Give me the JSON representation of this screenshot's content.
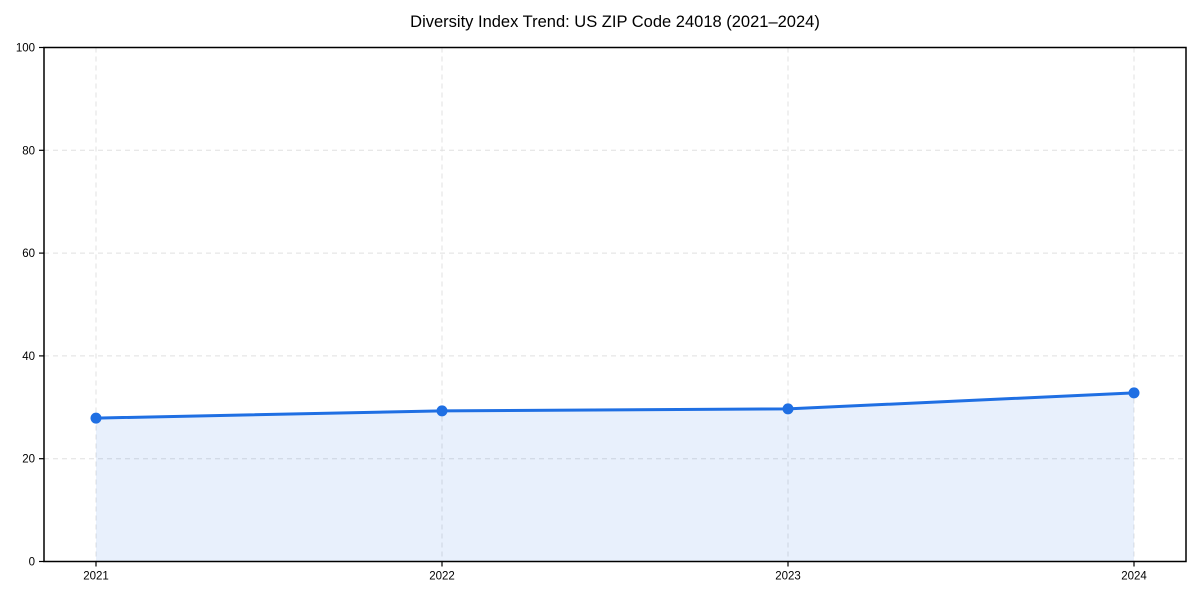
{
  "chart_data": {
    "type": "area",
    "title": "Diversity Index Trend: US ZIP Code 24018 (2021–2024)",
    "categories": [
      "2021",
      "2022",
      "2023",
      "2024"
    ],
    "series": [
      {
        "name": "Diversity Index",
        "values": [
          27.9,
          29.3,
          29.7,
          32.8
        ]
      }
    ],
    "xlabel": "",
    "ylabel": "",
    "ylim": [
      0,
      100
    ],
    "yticks": [
      0,
      20,
      40,
      60,
      80,
      100
    ],
    "grid": true,
    "grid_style": "dashed",
    "legend_position": "none",
    "colors": {
      "line": "#1f6fe3",
      "marker": "#1f6fe3",
      "area_fill": "rgba(31, 111, 227, 0.10)",
      "grid": "#e0e0e0",
      "axis": "#000000",
      "background": "#ffffff",
      "tick_label": "#000000"
    }
  }
}
